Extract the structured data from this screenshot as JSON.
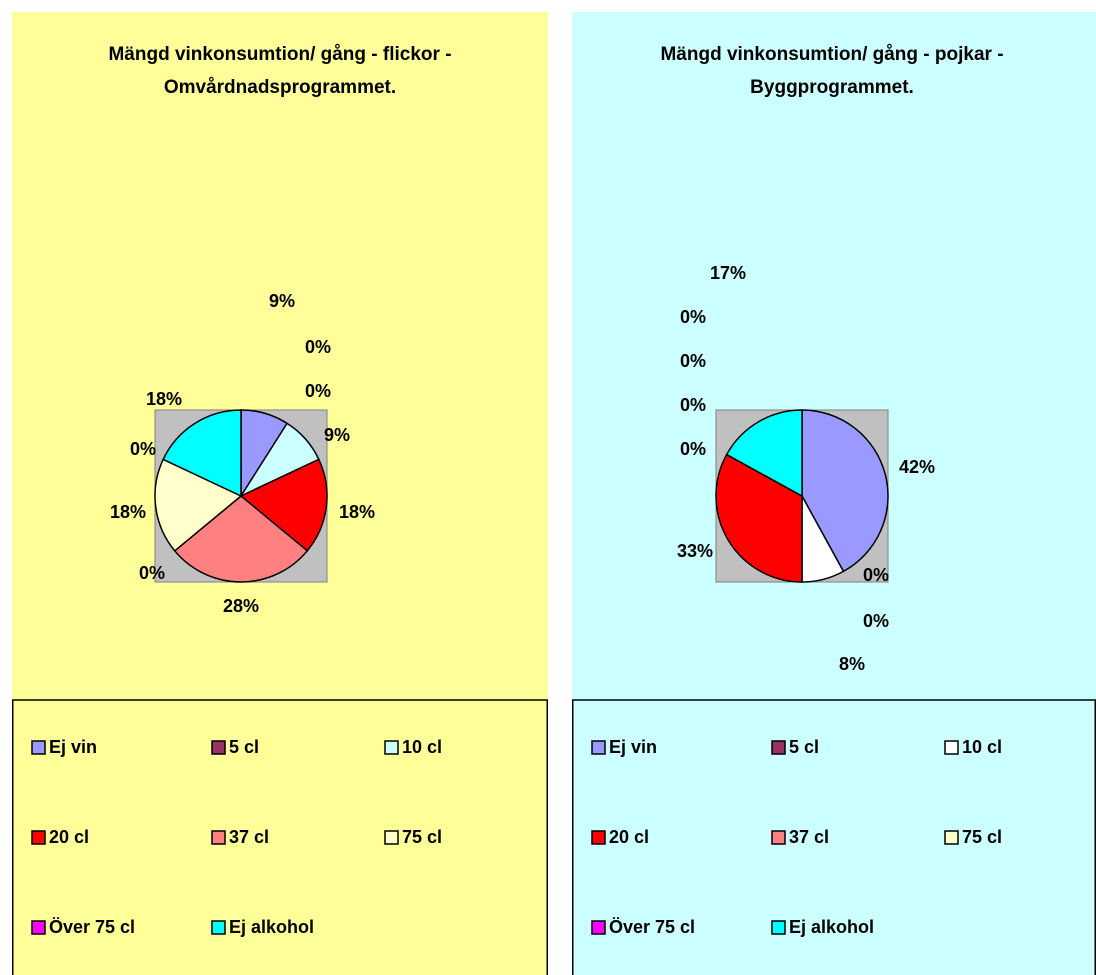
{
  "chart_data": [
    {
      "type": "pie",
      "title": "Mängd vinkonsumtion/ gång - flickor - Omvårdnadsprogrammet.",
      "categories": [
        "Ej vin",
        "5 cl",
        null,
        "10 cl",
        "20 cl",
        "37 cl",
        null,
        "75 cl",
        "Över 75 cl",
        "Ej alkohol"
      ],
      "values": [
        9,
        0,
        0,
        9,
        18,
        28,
        0,
        18,
        0,
        18
      ],
      "value_labels": [
        "9%",
        "0%",
        "0%",
        "9%",
        "18%",
        "28%",
        "0%",
        "18%",
        "0%",
        "18%"
      ],
      "colors": [
        "#9999ff",
        "#993366",
        "#ffffff",
        "#ccffff",
        "#ff0000",
        "#ff8080",
        "#ffffff",
        "#ffffcc",
        "#ff00ff",
        "#00ffff"
      ],
      "background": "#ffff99"
    },
    {
      "type": "pie",
      "title": "Mängd vinkonsumtion/ gång - pojkar - Byggprogrammet.",
      "categories": [
        "Ej vin",
        "5 cl",
        null,
        "10 cl",
        "20 cl",
        "37 cl",
        null,
        "75 cl",
        "Över 75 cl",
        "Ej alkohol"
      ],
      "values": [
        42,
        0,
        0,
        8,
        33,
        0,
        0,
        0,
        0,
        17
      ],
      "value_labels": [
        "42%",
        "0%",
        "0%",
        "8%",
        "33%",
        "0%",
        "0%",
        "0%",
        "0%",
        "17%"
      ],
      "colors": [
        "#9999ff",
        "#993366",
        "#ffffff",
        "#ffffff",
        "#ff0000",
        "#ff8080",
        "#ffffff",
        "#ffffcc",
        "#ff00ff",
        "#00ffff"
      ],
      "background": "#ccffff"
    }
  ]
}
